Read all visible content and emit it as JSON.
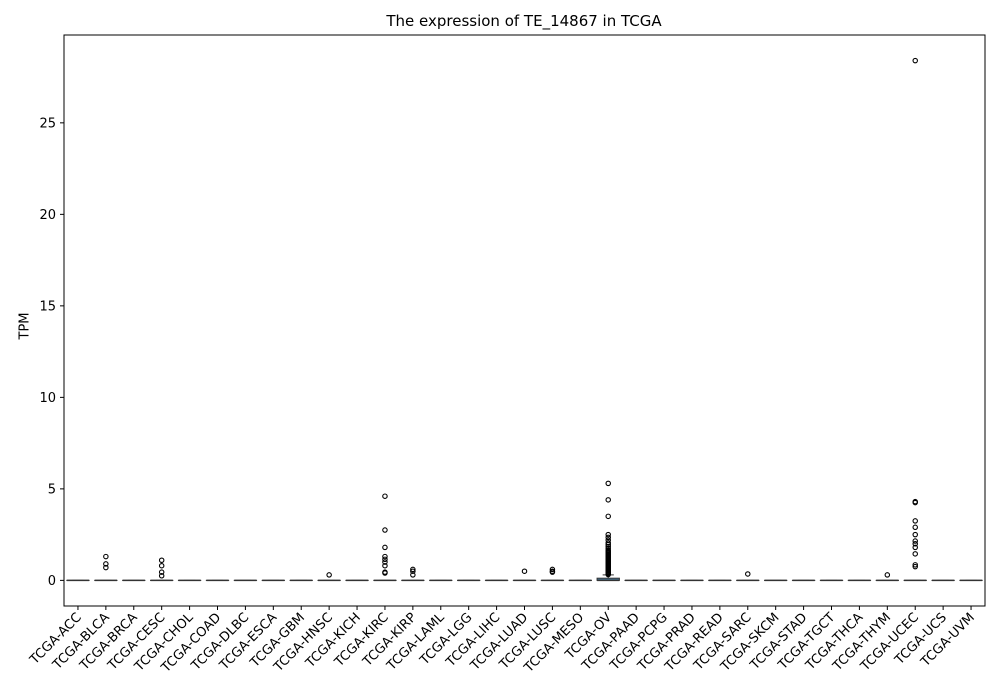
{
  "chart_data": {
    "type": "box",
    "title": "The expression of TE_14867 in TCGA",
    "xlabel": "",
    "ylabel": "TPM",
    "ylim": [
      -1.4,
      29.8
    ],
    "yticks": [
      0,
      5,
      10,
      15,
      20,
      25
    ],
    "grid": false,
    "box_color": "#4a7a9b",
    "categories": [
      "TCGA-ACC",
      "TCGA-BLCA",
      "TCGA-BRCA",
      "TCGA-CESC",
      "TCGA-CHOL",
      "TCGA-COAD",
      "TCGA-DLBC",
      "TCGA-ESCA",
      "TCGA-GBM",
      "TCGA-HNSC",
      "TCGA-KICH",
      "TCGA-KIRC",
      "TCGA-KIRP",
      "TCGA-LAML",
      "TCGA-LGG",
      "TCGA-LIHC",
      "TCGA-LUAD",
      "TCGA-LUSC",
      "TCGA-MESO",
      "TCGA-OV",
      "TCGA-PAAD",
      "TCGA-PCPG",
      "TCGA-PRAD",
      "TCGA-READ",
      "TCGA-SARC",
      "TCGA-SKCM",
      "TCGA-STAD",
      "TCGA-TGCT",
      "TCGA-THCA",
      "TCGA-THYM",
      "TCGA-UCEC",
      "TCGA-UCS",
      "TCGA-UVM"
    ],
    "boxes": [
      {
        "q1": 0,
        "median": 0,
        "q3": 0,
        "whisker_low": 0,
        "whisker_high": 0,
        "outliers": []
      },
      {
        "q1": 0,
        "median": 0,
        "q3": 0,
        "whisker_low": 0,
        "whisker_high": 0,
        "outliers": [
          1.3,
          0.9,
          0.7
        ]
      },
      {
        "q1": 0,
        "median": 0,
        "q3": 0,
        "whisker_low": 0,
        "whisker_high": 0,
        "outliers": []
      },
      {
        "q1": 0,
        "median": 0,
        "q3": 0,
        "whisker_low": 0,
        "whisker_high": 0,
        "outliers": [
          1.1,
          0.8,
          0.45,
          0.25
        ]
      },
      {
        "q1": 0,
        "median": 0,
        "q3": 0,
        "whisker_low": 0,
        "whisker_high": 0,
        "outliers": []
      },
      {
        "q1": 0,
        "median": 0,
        "q3": 0,
        "whisker_low": 0,
        "whisker_high": 0,
        "outliers": []
      },
      {
        "q1": 0,
        "median": 0,
        "q3": 0,
        "whisker_low": 0,
        "whisker_high": 0,
        "outliers": []
      },
      {
        "q1": 0,
        "median": 0,
        "q3": 0,
        "whisker_low": 0,
        "whisker_high": 0,
        "outliers": []
      },
      {
        "q1": 0,
        "median": 0,
        "q3": 0,
        "whisker_low": 0,
        "whisker_high": 0,
        "outliers": []
      },
      {
        "q1": 0,
        "median": 0,
        "q3": 0,
        "whisker_low": 0,
        "whisker_high": 0,
        "outliers": [
          0.3
        ]
      },
      {
        "q1": 0,
        "median": 0,
        "q3": 0,
        "whisker_low": 0,
        "whisker_high": 0,
        "outliers": []
      },
      {
        "q1": 0,
        "median": 0,
        "q3": 0,
        "whisker_low": 0,
        "whisker_high": 0,
        "outliers": [
          4.6,
          2.75,
          1.8,
          1.3,
          1.15,
          1.0,
          0.8,
          0.45,
          0.4
        ]
      },
      {
        "q1": 0,
        "median": 0,
        "q3": 0,
        "whisker_low": 0,
        "whisker_high": 0,
        "outliers": [
          0.6,
          0.5,
          0.3
        ]
      },
      {
        "q1": 0,
        "median": 0,
        "q3": 0,
        "whisker_low": 0,
        "whisker_high": 0,
        "outliers": []
      },
      {
        "q1": 0,
        "median": 0,
        "q3": 0,
        "whisker_low": 0,
        "whisker_high": 0,
        "outliers": []
      },
      {
        "q1": 0,
        "median": 0,
        "q3": 0,
        "whisker_low": 0,
        "whisker_high": 0,
        "outliers": []
      },
      {
        "q1": 0,
        "median": 0,
        "q3": 0,
        "whisker_low": 0,
        "whisker_high": 0,
        "outliers": [
          0.5
        ]
      },
      {
        "q1": 0,
        "median": 0,
        "q3": 0,
        "whisker_low": 0,
        "whisker_high": 0,
        "outliers": [
          0.6,
          0.5,
          0.45
        ]
      },
      {
        "q1": 0,
        "median": 0,
        "q3": 0,
        "whisker_low": 0,
        "whisker_high": 0,
        "outliers": []
      },
      {
        "q1": 0,
        "median": 0,
        "q3": 0.12,
        "whisker_low": 0,
        "whisker_high": 0.3,
        "outliers": [
          5.3,
          4.4,
          3.5,
          2.5,
          2.35,
          2.2,
          2.05,
          1.95,
          1.85,
          1.75,
          1.65,
          1.6,
          1.55,
          1.5,
          1.45,
          1.4,
          1.35,
          1.3,
          1.25,
          1.2,
          1.15,
          1.1,
          1.05,
          1.0,
          0.95,
          0.9,
          0.85,
          0.8,
          0.75,
          0.7,
          0.65,
          0.6,
          0.55,
          0.5,
          0.45,
          0.42,
          0.4,
          0.38,
          0.36,
          0.34,
          0.32
        ]
      },
      {
        "q1": 0,
        "median": 0,
        "q3": 0,
        "whisker_low": 0,
        "whisker_high": 0,
        "outliers": []
      },
      {
        "q1": 0,
        "median": 0,
        "q3": 0,
        "whisker_low": 0,
        "whisker_high": 0,
        "outliers": []
      },
      {
        "q1": 0,
        "median": 0,
        "q3": 0,
        "whisker_low": 0,
        "whisker_high": 0,
        "outliers": []
      },
      {
        "q1": 0,
        "median": 0,
        "q3": 0,
        "whisker_low": 0,
        "whisker_high": 0,
        "outliers": []
      },
      {
        "q1": 0,
        "median": 0,
        "q3": 0,
        "whisker_low": 0,
        "whisker_high": 0,
        "outliers": [
          0.35
        ]
      },
      {
        "q1": 0,
        "median": 0,
        "q3": 0,
        "whisker_low": 0,
        "whisker_high": 0,
        "outliers": []
      },
      {
        "q1": 0,
        "median": 0,
        "q3": 0,
        "whisker_low": 0,
        "whisker_high": 0,
        "outliers": []
      },
      {
        "q1": 0,
        "median": 0,
        "q3": 0,
        "whisker_low": 0,
        "whisker_high": 0,
        "outliers": []
      },
      {
        "q1": 0,
        "median": 0,
        "q3": 0,
        "whisker_low": 0,
        "whisker_high": 0,
        "outliers": []
      },
      {
        "q1": 0,
        "median": 0,
        "q3": 0,
        "whisker_low": 0,
        "whisker_high": 0,
        "outliers": [
          0.3
        ]
      },
      {
        "q1": 0,
        "median": 0,
        "q3": 0,
        "whisker_low": 0,
        "whisker_high": 0,
        "outliers": [
          28.4,
          4.3,
          4.25,
          3.25,
          2.9,
          2.5,
          2.15,
          2.0,
          1.8,
          1.45,
          0.85,
          0.75
        ]
      },
      {
        "q1": 0,
        "median": 0,
        "q3": 0,
        "whisker_low": 0,
        "whisker_high": 0,
        "outliers": []
      },
      {
        "q1": 0,
        "median": 0,
        "q3": 0,
        "whisker_low": 0,
        "whisker_high": 0,
        "outliers": []
      }
    ]
  }
}
